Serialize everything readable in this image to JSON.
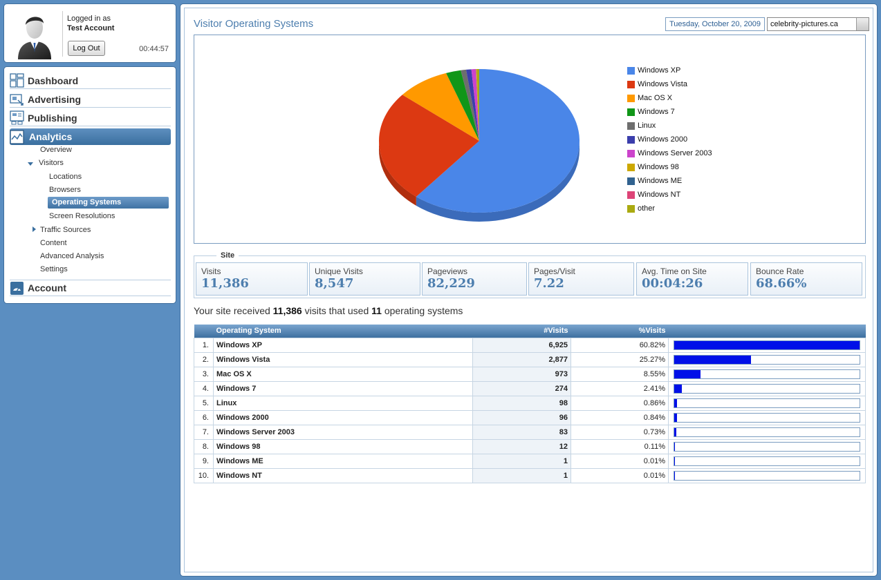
{
  "user": {
    "logged_in_label": "Logged in as",
    "account_name": "Test Account",
    "logout_label": "Log Out",
    "session_time": "00:44:57"
  },
  "nav": {
    "sections": {
      "dashboard": "Dashboard",
      "advertising": "Advertising",
      "publishing": "Publishing",
      "analytics": "Analytics",
      "account": "Account"
    },
    "analytics_items": {
      "overview": "Overview",
      "visitors": "Visitors",
      "locations": "Locations",
      "browsers": "Browsers",
      "operating_systems": "Operating Systems",
      "screen_resolutions": "Screen Resolutions",
      "traffic_sources": "Traffic Sources",
      "content": "Content",
      "advanced_analysis": "Advanced Analysis",
      "settings": "Settings"
    }
  },
  "page": {
    "title": "Visitor Operating Systems",
    "date": "Tuesday, October 20, 2009",
    "site": "celebrity-pictures.ca"
  },
  "chart_data": {
    "type": "pie",
    "categories": [
      "Windows XP",
      "Windows Vista",
      "Mac OS X",
      "Windows 7",
      "Linux",
      "Windows 2000",
      "Windows Server 2003",
      "Windows 98",
      "Windows ME",
      "Windows NT",
      "other"
    ],
    "values": [
      60.82,
      25.27,
      8.55,
      2.41,
      0.86,
      0.84,
      0.73,
      0.11,
      0.01,
      0.01,
      0.39
    ],
    "colors": [
      "#4a86e8",
      "#dc3912",
      "#ff9900",
      "#109618",
      "#6e6e6e",
      "#3b3eac",
      "#cc44cc",
      "#cca800",
      "#31628f",
      "#dd4477",
      "#aaaa11"
    ],
    "legend_position": "right"
  },
  "site_stats": {
    "title": "Site",
    "items": [
      {
        "label": "Visits",
        "value": "11,386"
      },
      {
        "label": "Unique Visits",
        "value": "8,547"
      },
      {
        "label": "Pageviews",
        "value": "82,229"
      },
      {
        "label": "Pages/Visit",
        "value": "7.22"
      },
      {
        "label": "Avg. Time on Site",
        "value": "00:04:26"
      },
      {
        "label": "Bounce Rate",
        "value": "68.66%"
      }
    ]
  },
  "summary": {
    "prefix": "Your site received ",
    "visits": "11,386",
    "middle": " visits that used ",
    "os_count": "11",
    "suffix": " operating systems"
  },
  "table": {
    "headers": {
      "os": "Operating System",
      "visits": "#Visits",
      "pct": "%Visits"
    },
    "rows": [
      {
        "rank": "1.",
        "os": "Windows XP",
        "visits": "6,925",
        "pct": "60.82%",
        "share": 0.6082
      },
      {
        "rank": "2.",
        "os": "Windows Vista",
        "visits": "2,877",
        "pct": "25.27%",
        "share": 0.2527
      },
      {
        "rank": "3.",
        "os": "Mac OS X",
        "visits": "973",
        "pct": "8.55%",
        "share": 0.0855
      },
      {
        "rank": "4.",
        "os": "Windows 7",
        "visits": "274",
        "pct": "2.41%",
        "share": 0.0241
      },
      {
        "rank": "5.",
        "os": "Linux",
        "visits": "98",
        "pct": "0.86%",
        "share": 0.0086
      },
      {
        "rank": "6.",
        "os": "Windows 2000",
        "visits": "96",
        "pct": "0.84%",
        "share": 0.0084
      },
      {
        "rank": "7.",
        "os": "Windows Server 2003",
        "visits": "83",
        "pct": "0.73%",
        "share": 0.0073
      },
      {
        "rank": "8.",
        "os": "Windows 98",
        "visits": "12",
        "pct": "0.11%",
        "share": 0.0011
      },
      {
        "rank": "9.",
        "os": "Windows ME",
        "visits": "1",
        "pct": "0.01%",
        "share": 0.0001
      },
      {
        "rank": "10.",
        "os": "Windows NT",
        "visits": "1",
        "pct": "0.01%",
        "share": 0.0001
      }
    ]
  }
}
